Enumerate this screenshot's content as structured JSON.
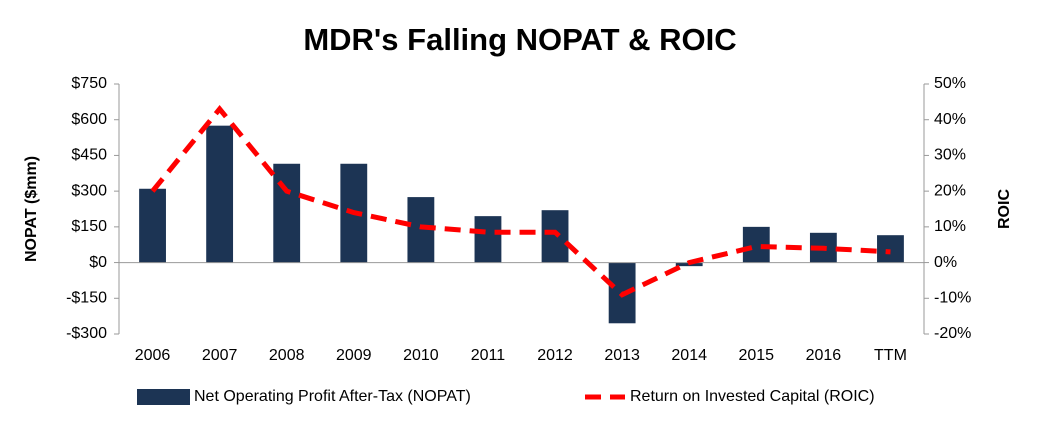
{
  "chart_data": {
    "type": "bar_line",
    "title": "MDR's Falling NOPAT & ROIC",
    "y_label": "NOPAT ($mm)",
    "y2_label": "ROIC",
    "categories": [
      "2006",
      "2007",
      "2008",
      "2009",
      "2010",
      "2011",
      "2012",
      "2013",
      "2014",
      "2015",
      "2016",
      "TTM"
    ],
    "series": [
      {
        "name": "Net Operating Profit After-Tax (NOPAT)",
        "type": "bar",
        "color": "#1c3454",
        "values": [
          310,
          575,
          415,
          415,
          275,
          195,
          220,
          -255,
          -15,
          150,
          125,
          115
        ]
      },
      {
        "name": "Return on Invested Capital (ROIC)",
        "type": "line",
        "axis": "y2",
        "color": "#ff0000",
        "dashed": true,
        "values": [
          20,
          43,
          20,
          14,
          10,
          8.5,
          8.5,
          -9,
          0,
          4.5,
          4,
          3
        ]
      }
    ],
    "ylim": [
      -300,
      750
    ],
    "yticks": [
      {
        "value": -300,
        "label": "-$300"
      },
      {
        "value": -150,
        "label": "-$150"
      },
      {
        "value": 0,
        "label": "$0"
      },
      {
        "value": 150,
        "label": "$150"
      },
      {
        "value": 300,
        "label": "$300"
      },
      {
        "value": 450,
        "label": "$450"
      },
      {
        "value": 600,
        "label": "$600"
      },
      {
        "value": 750,
        "label": "$750"
      }
    ],
    "y2lim": [
      -20,
      50
    ],
    "y2ticks": [
      {
        "value": -20,
        "label": "-20%"
      },
      {
        "value": -10,
        "label": "-10%"
      },
      {
        "value": 0,
        "label": "0%"
      },
      {
        "value": 10,
        "label": "10%"
      },
      {
        "value": 20,
        "label": "20%"
      },
      {
        "value": 30,
        "label": "30%"
      },
      {
        "value": 40,
        "label": "40%"
      },
      {
        "value": 50,
        "label": "50%"
      }
    ],
    "grid": false,
    "legend": "bottom"
  }
}
